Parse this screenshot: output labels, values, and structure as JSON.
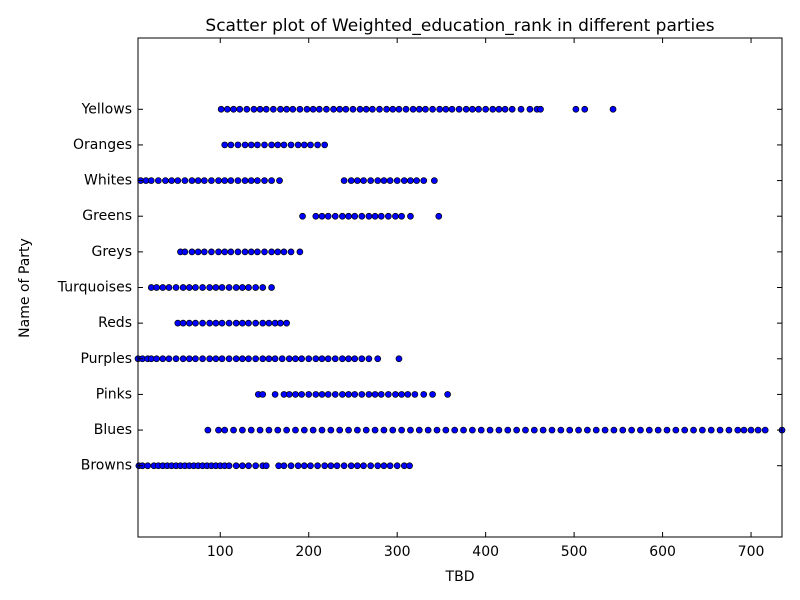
{
  "chart_data": {
    "type": "scatter",
    "title": "Scatter plot of Weighted_education_rank in different parties",
    "x_label": "TBD",
    "y_label": "Name of Party",
    "categories": [
      "Browns",
      "Blues",
      "Pinks",
      "Purples",
      "Reds",
      "Turquoises",
      "Greys",
      "Greens",
      "Whites",
      "Oranges",
      "Yellows"
    ],
    "series": [
      {
        "x": [
          8,
          12,
          18,
          25,
          30,
          35,
          40,
          45,
          50,
          55,
          60,
          65,
          70,
          75,
          80,
          85,
          90,
          95,
          100,
          105,
          110,
          118,
          125,
          132,
          140,
          148,
          152,
          166,
          172,
          180,
          188,
          195,
          202,
          210,
          218,
          225,
          232,
          240,
          248,
          255,
          262,
          270,
          278,
          285,
          292,
          300,
          308,
          314
        ]
      },
      {
        "x": [
          86,
          98,
          105,
          115,
          125,
          135,
          145,
          155,
          165,
          175,
          185,
          195,
          205,
          215,
          225,
          235,
          245,
          255,
          265,
          275,
          285,
          295,
          305,
          315,
          325,
          335,
          345,
          355,
          365,
          375,
          385,
          395,
          405,
          415,
          425,
          435,
          445,
          455,
          465,
          475,
          485,
          495,
          505,
          515,
          525,
          535,
          545,
          555,
          565,
          575,
          585,
          595,
          605,
          615,
          625,
          635,
          645,
          655,
          665,
          675,
          685,
          692,
          700,
          708,
          716,
          735
        ]
      },
      {
        "x": [
          143,
          148,
          162,
          172,
          178,
          185,
          192,
          200,
          208,
          215,
          222,
          230,
          238,
          245,
          252,
          260,
          268,
          275,
          282,
          290,
          298,
          305,
          312,
          320,
          330,
          340,
          357
        ]
      },
      {
        "x": [
          7,
          12,
          18,
          22,
          28,
          35,
          42,
          50,
          58,
          65,
          72,
          80,
          88,
          95,
          102,
          110,
          118,
          125,
          132,
          140,
          148,
          155,
          162,
          170,
          178,
          185,
          192,
          200,
          208,
          215,
          222,
          230,
          238,
          245,
          252,
          260,
          268,
          278,
          302
        ]
      },
      {
        "x": [
          52,
          58,
          65,
          72,
          80,
          88,
          95,
          102,
          110,
          118,
          125,
          132,
          140,
          148,
          155,
          162,
          168,
          175
        ]
      },
      {
        "x": [
          22,
          28,
          35,
          42,
          50,
          58,
          65,
          72,
          80,
          88,
          95,
          102,
          110,
          118,
          125,
          132,
          140,
          148,
          158
        ]
      },
      {
        "x": [
          55,
          60,
          68,
          75,
          82,
          90,
          98,
          105,
          112,
          120,
          128,
          135,
          142,
          150,
          158,
          165,
          172,
          180,
          190
        ]
      },
      {
        "x": [
          193,
          208,
          215,
          222,
          230,
          238,
          245,
          252,
          260,
          268,
          275,
          282,
          290,
          298,
          305,
          315,
          347
        ]
      },
      {
        "x": [
          10,
          16,
          22,
          30,
          38,
          45,
          52,
          60,
          68,
          75,
          82,
          90,
          98,
          105,
          112,
          120,
          128,
          135,
          142,
          150,
          158,
          167,
          240,
          248,
          255,
          262,
          270,
          278,
          285,
          292,
          300,
          308,
          315,
          322,
          330,
          342
        ]
      },
      {
        "x": [
          105,
          112,
          120,
          128,
          135,
          142,
          150,
          158,
          165,
          172,
          180,
          188,
          195,
          202,
          210,
          218
        ]
      },
      {
        "x": [
          101,
          108,
          115,
          122,
          130,
          138,
          145,
          152,
          160,
          168,
          175,
          182,
          190,
          198,
          205,
          212,
          220,
          228,
          235,
          242,
          250,
          258,
          265,
          272,
          280,
          288,
          295,
          302,
          310,
          318,
          325,
          332,
          340,
          348,
          355,
          362,
          370,
          378,
          385,
          392,
          400,
          408,
          415,
          422,
          430,
          440,
          450,
          458,
          462,
          502,
          512,
          544
        ]
      }
    ],
    "color": "#0000ff",
    "xlim": [
      7,
      735
    ],
    "xticks": [
      100,
      200,
      300,
      400,
      500,
      600,
      700
    ]
  }
}
